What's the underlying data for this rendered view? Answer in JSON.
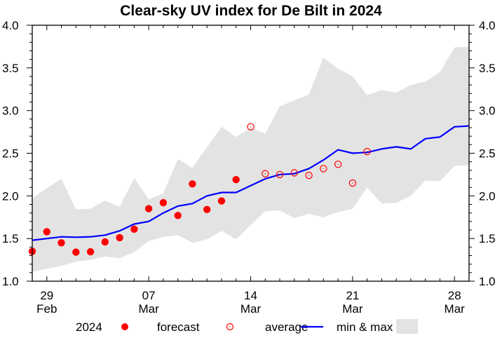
{
  "chart_data": {
    "type": "line",
    "title": "Clear-sky UV index for De Bilt in 2024",
    "xlabel": "",
    "ylabel": "",
    "ylim": [
      1.0,
      4.0
    ],
    "xlim": [
      "2024-02-28",
      "2024-03-29"
    ],
    "yticks": [
      "1.0",
      "1.5",
      "2.0",
      "2.5",
      "3.0",
      "3.5",
      "4.0"
    ],
    "ytick_values": [
      1.0,
      1.5,
      2.0,
      2.5,
      3.0,
      3.5,
      4.0
    ],
    "y_minor_step": 0.1,
    "xticks": [
      {
        "date": "2024-02-29",
        "day": "29",
        "month": "Feb"
      },
      {
        "date": "2024-03-07",
        "day": "07",
        "month": "Mar"
      },
      {
        "date": "2024-03-14",
        "day": "14",
        "month": "Mar"
      },
      {
        "date": "2024-03-21",
        "day": "21",
        "month": "Mar"
      },
      {
        "date": "2024-03-28",
        "day": "28",
        "month": "Mar"
      }
    ],
    "grid": false,
    "legend_placement": "bottom",
    "dates": [
      "2024-02-28",
      "2024-02-29",
      "2024-03-01",
      "2024-03-02",
      "2024-03-03",
      "2024-03-04",
      "2024-03-05",
      "2024-03-06",
      "2024-03-07",
      "2024-03-08",
      "2024-03-09",
      "2024-03-10",
      "2024-03-11",
      "2024-03-12",
      "2024-03-13",
      "2024-03-14",
      "2024-03-15",
      "2024-03-16",
      "2024-03-17",
      "2024-03-18",
      "2024-03-19",
      "2024-03-20",
      "2024-03-21",
      "2024-03-22",
      "2024-03-23",
      "2024-03-24",
      "2024-03-25",
      "2024-03-26",
      "2024-03-27",
      "2024-03-28",
      "2024-03-29"
    ],
    "series": [
      {
        "name": "2024",
        "kind": "scatter-filled",
        "color": "#ff0000",
        "points": [
          {
            "date": "2024-02-28",
            "value": 1.35
          },
          {
            "date": "2024-02-29",
            "value": 1.58
          },
          {
            "date": "2024-03-01",
            "value": 1.45
          },
          {
            "date": "2024-03-02",
            "value": 1.34
          },
          {
            "date": "2024-03-03",
            "value": 1.345
          },
          {
            "date": "2024-03-04",
            "value": 1.46
          },
          {
            "date": "2024-03-05",
            "value": 1.51
          },
          {
            "date": "2024-03-06",
            "value": 1.61
          },
          {
            "date": "2024-03-07",
            "value": 1.85
          },
          {
            "date": "2024-03-08",
            "value": 1.92
          },
          {
            "date": "2024-03-09",
            "value": 1.77
          },
          {
            "date": "2024-03-10",
            "value": 2.14
          },
          {
            "date": "2024-03-11",
            "value": 1.84
          },
          {
            "date": "2024-03-12",
            "value": 1.94
          },
          {
            "date": "2024-03-13",
            "value": 2.19
          }
        ]
      },
      {
        "name": "forecast",
        "kind": "scatter-open",
        "color": "#ff0000",
        "points": [
          {
            "date": "2024-03-14",
            "value": 2.81
          },
          {
            "date": "2024-03-15",
            "value": 2.26
          },
          {
            "date": "2024-03-16",
            "value": 2.25
          },
          {
            "date": "2024-03-17",
            "value": 2.27
          },
          {
            "date": "2024-03-18",
            "value": 2.24
          },
          {
            "date": "2024-03-19",
            "value": 2.32
          },
          {
            "date": "2024-03-20",
            "value": 2.37
          },
          {
            "date": "2024-03-21",
            "value": 2.15
          },
          {
            "date": "2024-03-22",
            "value": 2.52
          }
        ]
      },
      {
        "name": "average",
        "kind": "line",
        "color": "#0000ff",
        "values": [
          1.48,
          1.5,
          1.52,
          1.515,
          1.52,
          1.54,
          1.59,
          1.67,
          1.7,
          1.8,
          1.88,
          1.91,
          2.0,
          2.04,
          2.04,
          2.12,
          2.2,
          2.25,
          2.26,
          2.32,
          2.42,
          2.54,
          2.5,
          2.51,
          2.55,
          2.575,
          2.55,
          2.67,
          2.69,
          2.81,
          2.82
        ]
      },
      {
        "name": "min & max",
        "kind": "band",
        "color": "#e3e3e3",
        "min": [
          1.11,
          1.145,
          1.18,
          1.23,
          1.25,
          1.29,
          1.27,
          1.34,
          1.47,
          1.52,
          1.54,
          1.45,
          1.49,
          1.59,
          1.49,
          1.66,
          1.82,
          1.83,
          1.74,
          1.79,
          1.75,
          1.81,
          1.85,
          2.1,
          1.91,
          1.92,
          2.0,
          2.18,
          2.17,
          2.35,
          2.36
        ],
        "max": [
          1.97,
          2.09,
          2.2,
          1.84,
          1.85,
          1.945,
          1.87,
          2.21,
          1.96,
          2.03,
          2.43,
          2.33,
          2.57,
          2.81,
          2.69,
          2.8,
          2.73,
          3.05,
          3.12,
          3.19,
          3.62,
          3.49,
          3.4,
          3.18,
          3.24,
          3.21,
          3.3,
          3.34,
          3.45,
          3.74,
          3.75
        ]
      }
    ],
    "legend": [
      {
        "label": "2024",
        "symbol": "filled-circle"
      },
      {
        "label": "forecast",
        "symbol": "open-circle"
      },
      {
        "label": "average",
        "symbol": "line"
      },
      {
        "label": "min & max",
        "symbol": "box"
      }
    ]
  }
}
